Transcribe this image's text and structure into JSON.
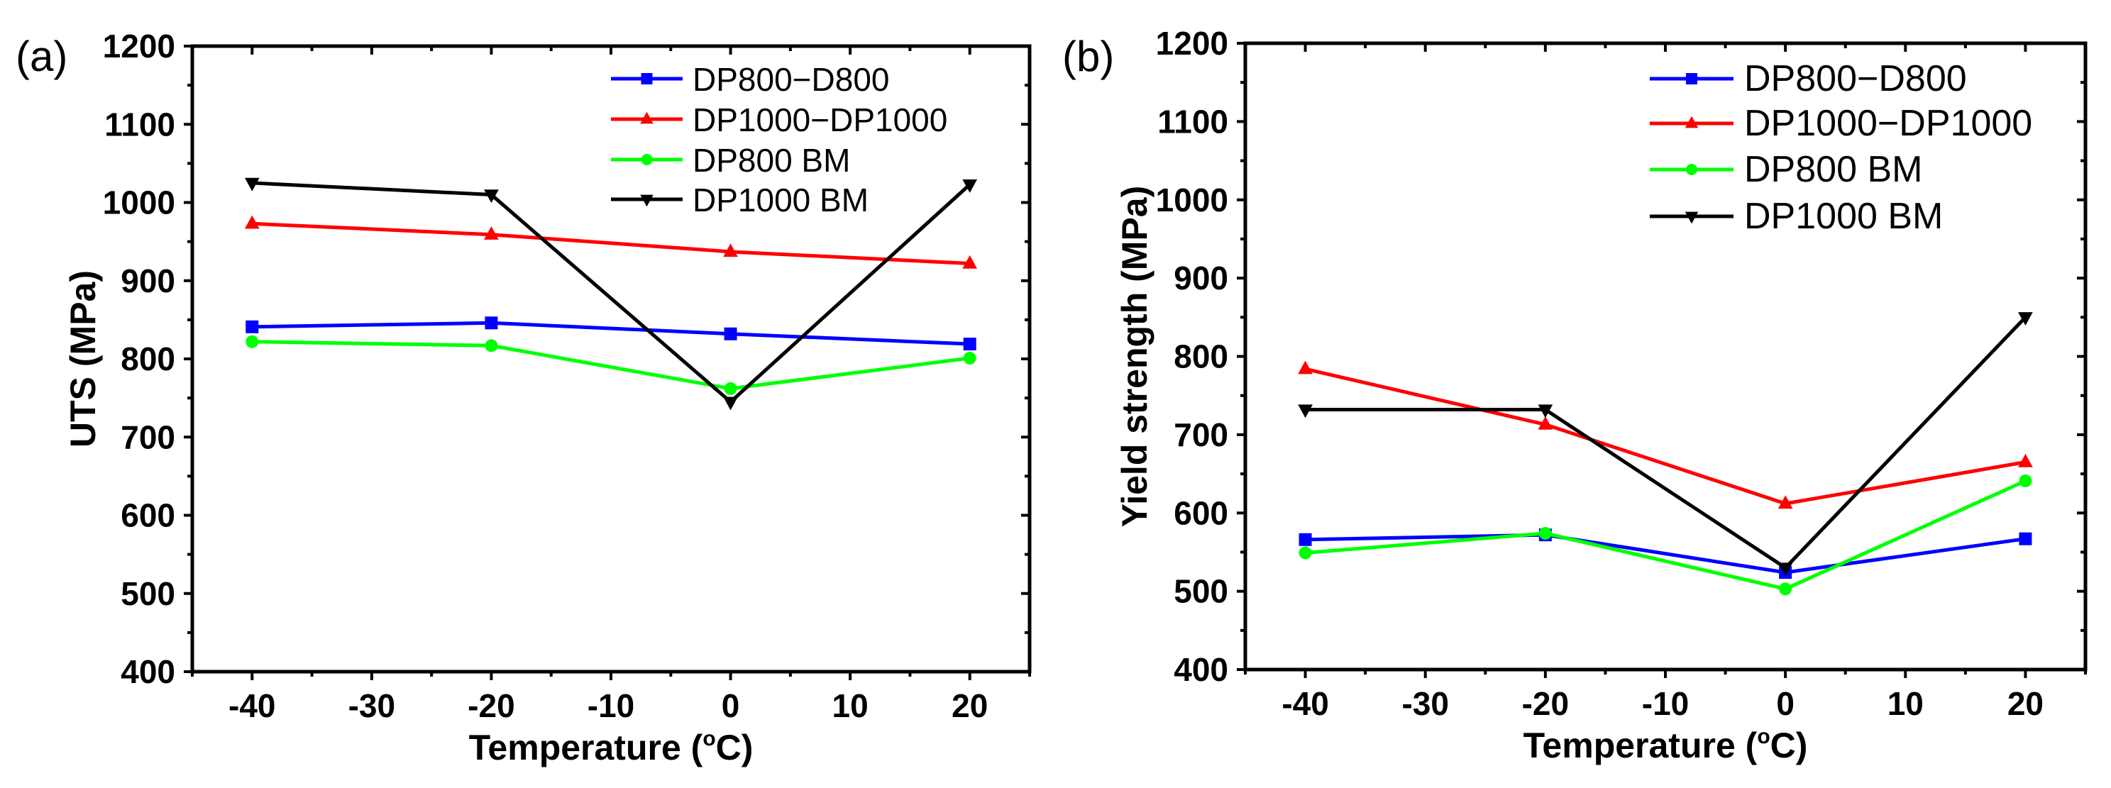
{
  "chart_data": [
    {
      "type": "line",
      "panel_label": "(a)",
      "title": "",
      "xlabel": "Temperature (",
      "xlabel_sup": "o",
      "xlabel_end": "C)",
      "ylabel": "UTS (MPa)",
      "xlim": [
        -45,
        25
      ],
      "ylim": [
        400,
        1200
      ],
      "xticks": [
        -40,
        -30,
        -20,
        -10,
        0,
        10,
        20
      ],
      "yticks": [
        400,
        500,
        600,
        700,
        800,
        900,
        1000,
        1100,
        1200
      ],
      "legend_position": "top-right",
      "x": [
        -40,
        -20,
        0,
        20
      ],
      "series": [
        {
          "name": "DP800−D800",
          "color": "#0000ff",
          "marker": "square",
          "values": [
            841,
            846,
            832,
            819
          ]
        },
        {
          "name": "DP1000−DP1000",
          "color": "#ff0000",
          "marker": "triangle-up",
          "values": [
            973,
            959,
            937,
            922
          ]
        },
        {
          "name": "DP800 BM",
          "color": "#00ff00",
          "marker": "circle",
          "values": [
            822,
            817,
            762,
            801
          ]
        },
        {
          "name": "DP1000 BM",
          "color": "#000000",
          "marker": "triangle-down",
          "values": [
            1025,
            1010,
            745,
            1023
          ]
        }
      ]
    },
    {
      "type": "line",
      "panel_label": "(b)",
      "title": "",
      "xlabel": "Temperature (",
      "xlabel_sup": "o",
      "xlabel_end": "C)",
      "ylabel": "Yield strength (MPa)",
      "xlim": [
        -45,
        25
      ],
      "ylim": [
        400,
        1200
      ],
      "xticks": [
        -40,
        -30,
        -20,
        -10,
        0,
        10,
        20
      ],
      "yticks": [
        400,
        500,
        600,
        700,
        800,
        900,
        1000,
        1100,
        1200
      ],
      "legend_position": "top-right",
      "x": [
        -40,
        -20,
        0,
        20
      ],
      "series": [
        {
          "name": "DP800−D800",
          "color": "#0000ff",
          "marker": "square",
          "values": [
            566,
            572,
            524,
            567
          ]
        },
        {
          "name": "DP1000−DP1000",
          "color": "#ff0000",
          "marker": "triangle-up",
          "values": [
            784,
            713,
            612,
            665
          ]
        },
        {
          "name": "DP800 BM",
          "color": "#00ff00",
          "marker": "circle",
          "values": [
            549,
            574,
            503,
            641
          ]
        },
        {
          "name": "DP1000 BM",
          "color": "#000000",
          "marker": "triangle-down",
          "values": [
            732,
            732,
            530,
            850
          ]
        }
      ]
    }
  ]
}
